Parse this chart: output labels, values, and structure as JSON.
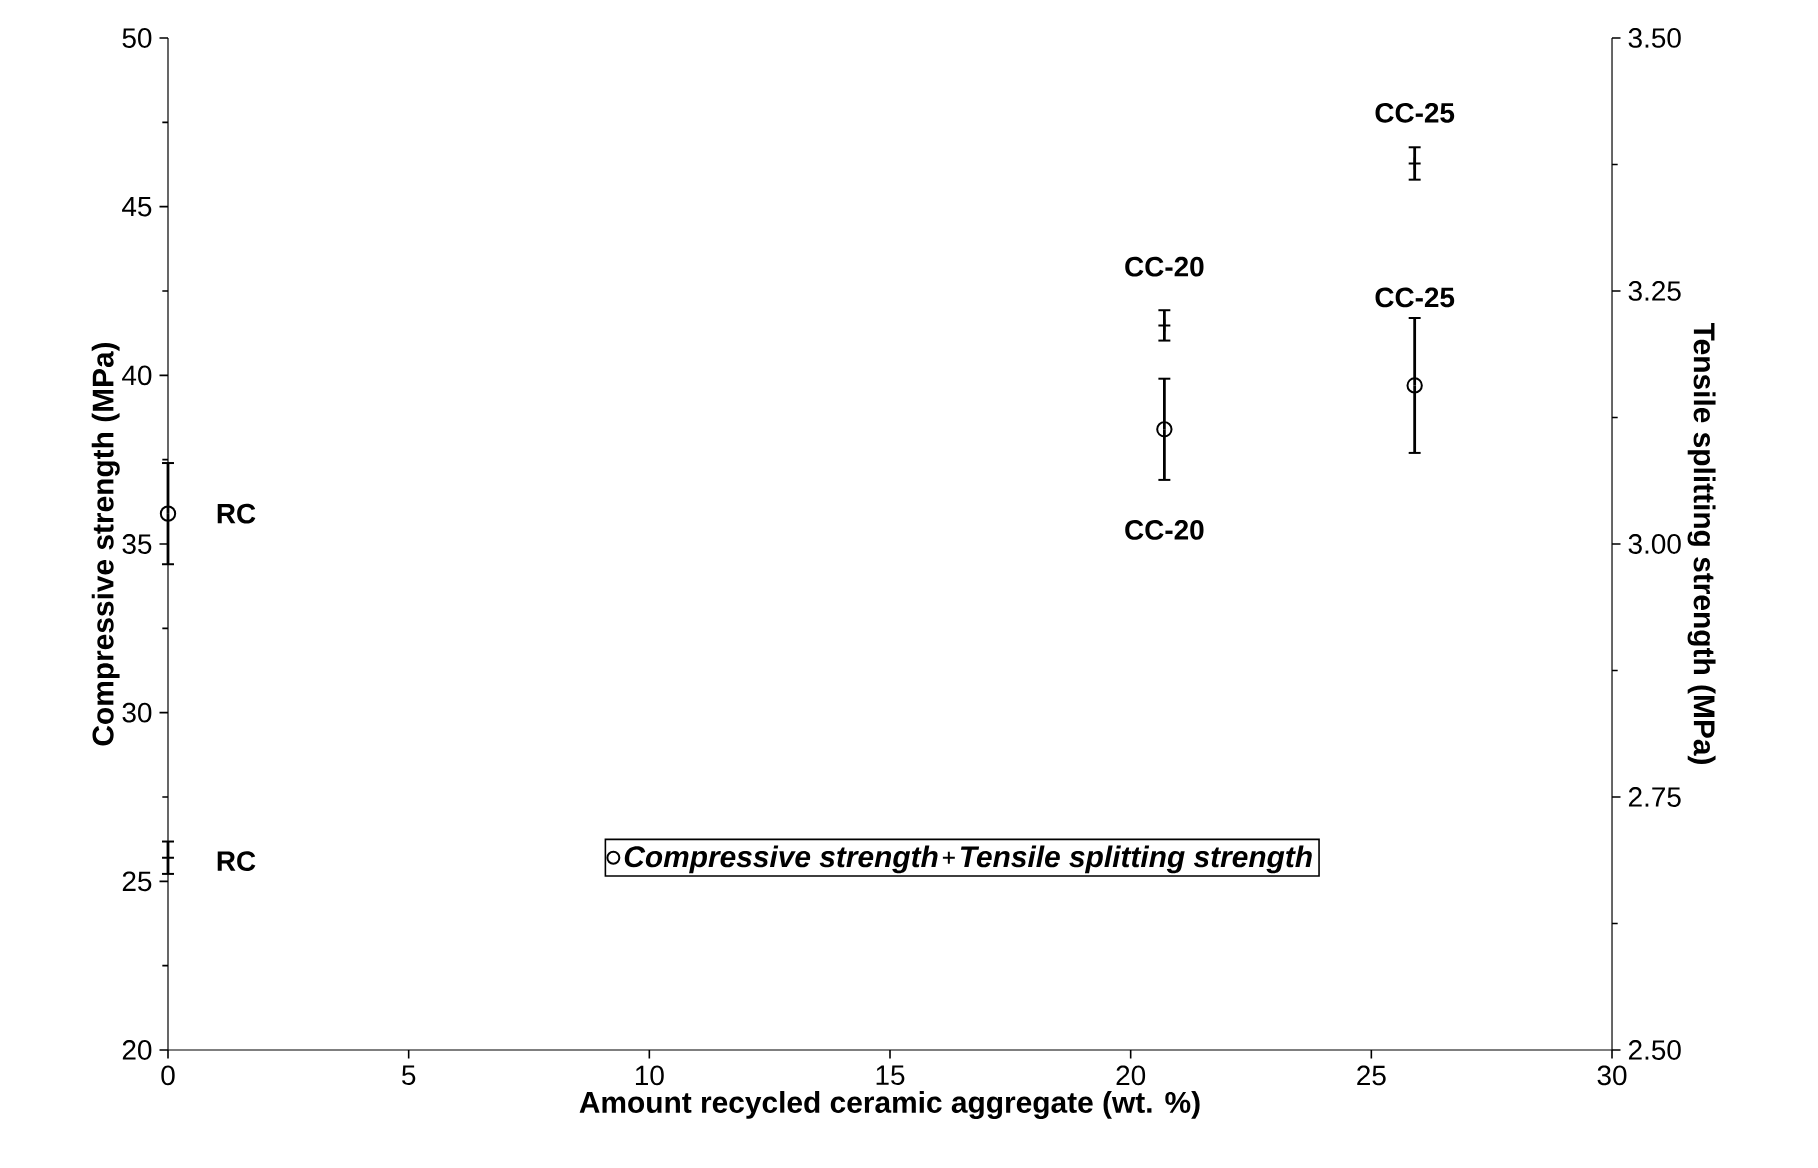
{
  "chart_data": {
    "type": "scatter",
    "xlabel": "Amount recycled ceramic aggregate (wt. %)",
    "ylabel": "Compressive strength (MPa)",
    "y2label": "Tensile splitting strength (MPa)",
    "series": [
      {
        "name": "Compressive strength",
        "color": "#000000",
        "marker": "circle",
        "x": [
          0,
          20.7,
          25.9
        ],
        "values": [
          35.9,
          38.4,
          39.7
        ],
        "errors": [
          1.5,
          1.5,
          2.0
        ]
      },
      {
        "name": "Tensile splitting strength",
        "color": "#000000",
        "marker": "cross",
        "axis": "y2",
        "x": [
          0,
          20.7,
          25.9
        ],
        "values": [
          2.69,
          3.216,
          3.376
        ],
        "errors": [
          0.016,
          0.015,
          0.016
        ]
      }
    ],
    "xlim": [
      0,
      30
    ],
    "xticks": [
      0,
      5,
      10,
      15,
      20,
      25,
      30
    ],
    "ylim": [
      20,
      50
    ],
    "yticks": [
      20,
      25,
      30,
      35,
      40,
      45,
      50
    ],
    "y2lim": [
      2.5,
      3.5
    ],
    "y2ticks": [
      {
        "value": 2.5,
        "label": "2.50"
      },
      {
        "value": 2.75,
        "label": "2.75"
      },
      {
        "value": 3.0,
        "label": "3.00"
      },
      {
        "value": 3.25,
        "label": "3.25"
      },
      {
        "value": 3.5,
        "label": "3.50"
      }
    ],
    "annotations": [
      {
        "text": "RC",
        "x": 0,
        "y": 35.9
      },
      {
        "text": "RC",
        "x": 0,
        "y": 25.6
      },
      {
        "text": "CC-20",
        "x": 20.7,
        "y": 41.5
      },
      {
        "text": "CC-20",
        "x": 20.7,
        "y": 36.9
      },
      {
        "text": "CC-25",
        "x": 25.9,
        "y": 46.3
      },
      {
        "text": "CC-25",
        "x": 25.9,
        "y": 39.7
      }
    ],
    "legend": "bottom",
    "grid": false
  }
}
